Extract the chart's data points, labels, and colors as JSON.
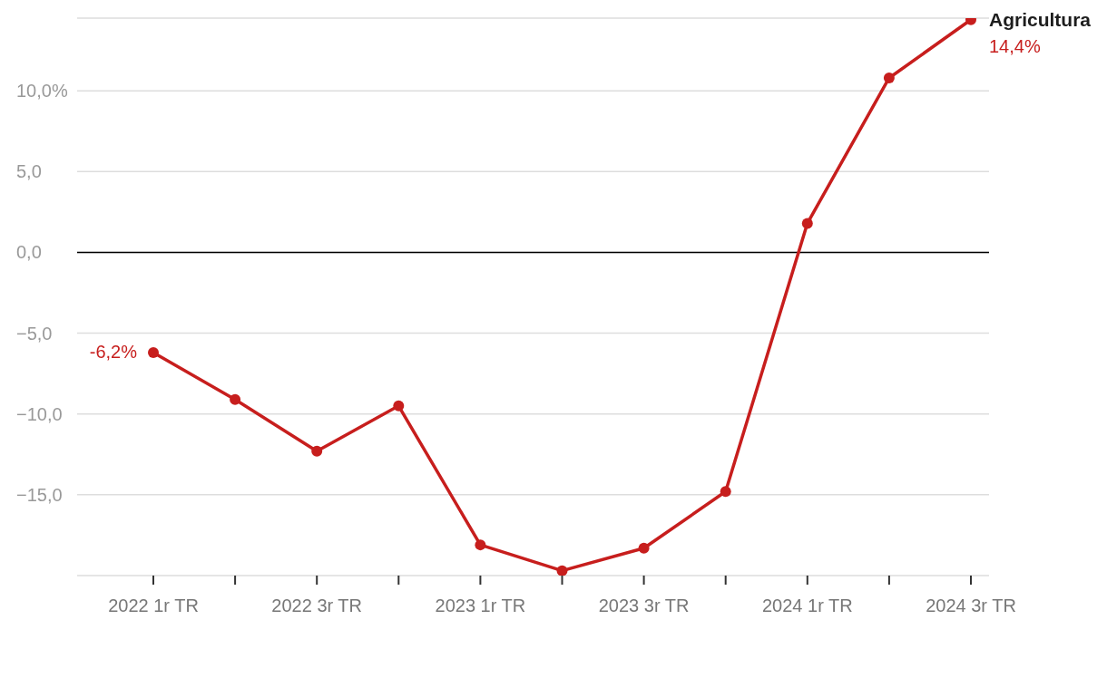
{
  "chart_data": {
    "type": "line",
    "categories": [
      "2022 1r TR",
      null,
      "2022 3r TR",
      null,
      "2023 1r TR",
      null,
      "2023 3r TR",
      null,
      "2024 1r TR",
      null,
      "2024 3r TR"
    ],
    "series": [
      {
        "name": "Agricultura",
        "color": "#c71e1d",
        "values": [
          -6.2,
          -9.1,
          -12.3,
          -9.5,
          -18.1,
          -19.7,
          -18.3,
          -14.8,
          1.8,
          10.8,
          14.4
        ],
        "value_labels": [
          "-6,2%",
          null,
          null,
          null,
          null,
          null,
          null,
          null,
          null,
          null,
          "14,4%"
        ]
      }
    ],
    "ylim": [
      -20,
      14.5
    ],
    "yticks": [
      {
        "value": -15,
        "label": "−15,0"
      },
      {
        "value": -10,
        "label": "−10,0"
      },
      {
        "value": -5,
        "label": "−5,0"
      },
      {
        "value": 0,
        "label": "0,0"
      },
      {
        "value": 5,
        "label": "5,0"
      },
      {
        "value": 10,
        "label": "10,0%"
      }
    ],
    "ref_lines": [
      {
        "axis": "y",
        "value": 0,
        "color": "#000000"
      }
    ],
    "grid": "y",
    "marker": "circle",
    "line_style": "solid"
  }
}
